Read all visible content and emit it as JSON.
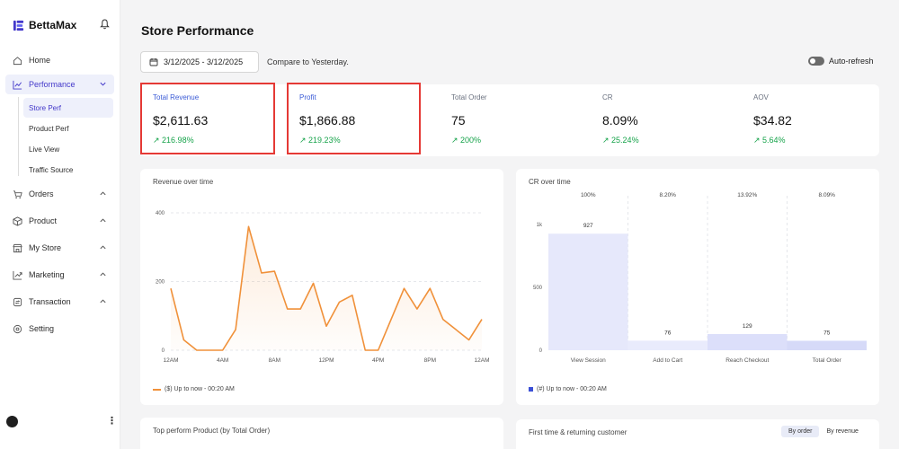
{
  "app": {
    "brand": "BettaMax"
  },
  "sidebar": {
    "items": [
      {
        "label": "Home",
        "icon": "home-icon"
      },
      {
        "label": "Performance",
        "icon": "chart-icon"
      },
      {
        "label": "Orders",
        "icon": "cart-icon"
      },
      {
        "label": "Product",
        "icon": "box-icon"
      },
      {
        "label": "My Store",
        "icon": "store-icon"
      },
      {
        "label": "Marketing",
        "icon": "marketing-icon"
      },
      {
        "label": "Transaction",
        "icon": "transaction-icon"
      },
      {
        "label": "Setting",
        "icon": "gear-icon"
      }
    ],
    "sub_items": [
      "Store Perf",
      "Product Perf",
      "Live View",
      "Traffic Source"
    ]
  },
  "header": {
    "title": "Store Performance",
    "date_range": "3/12/2025 - 3/12/2025",
    "compare": "Compare to Yesterday.",
    "auto_refresh": "Auto-refresh"
  },
  "metrics": [
    {
      "label": "Total Revenue",
      "value": "$2,611.63",
      "change": "↗ 216.98%"
    },
    {
      "label": "Profit",
      "value": "$1,866.88",
      "change": "↗ 219.23%"
    },
    {
      "label": "Total Order",
      "value": "75",
      "change": "↗ 200%"
    },
    {
      "label": "CR",
      "value": "8.09%",
      "change": "↗ 25.24%"
    },
    {
      "label": "AOV",
      "value": "$34.82",
      "change": "↗ 5.64%"
    }
  ],
  "revenue_card": {
    "title": "Revenue over time",
    "legend": "($) Up to now - 00:20 AM"
  },
  "cr_card": {
    "title": "CR over time",
    "legend": "(#) Up to now - 00:20 AM"
  },
  "bottom": {
    "left_title": "Top perform Product (by Total Order)",
    "right_title": "First time & returning customer",
    "by_order": "By order",
    "by_revenue": "By revenue"
  },
  "colors": {
    "accent": "#4338ca",
    "line": "#f0913a",
    "positive": "#16a34a",
    "highlight": "#e53935"
  },
  "chart_data": [
    {
      "type": "line",
      "title": "Revenue over time",
      "x": [
        "12AM",
        "1AM",
        "2AM",
        "3AM",
        "4AM",
        "5AM",
        "6AM",
        "7AM",
        "8AM",
        "9AM",
        "10AM",
        "11AM",
        "12PM",
        "1PM",
        "2PM",
        "3PM",
        "4PM",
        "5PM",
        "6PM",
        "7PM",
        "8PM",
        "9PM",
        "10PM",
        "11PM",
        "12AM"
      ],
      "xticks": [
        "12AM",
        "4AM",
        "8AM",
        "12PM",
        "4PM",
        "8PM",
        "12AM"
      ],
      "yticks": [
        "0",
        "200",
        "400"
      ],
      "values": [
        180,
        30,
        0,
        0,
        0,
        60,
        360,
        225,
        230,
        120,
        120,
        195,
        70,
        140,
        160,
        0,
        0,
        90,
        180,
        120,
        180,
        90,
        60,
        30,
        90
      ],
      "ylim": [
        0,
        400
      ],
      "series_name": "($) Up to now - 00:20 AM"
    },
    {
      "type": "bar",
      "title": "CR over time",
      "categories": [
        "View Session",
        "Add to Cart",
        "Reach Checkout",
        "Total Order"
      ],
      "values": [
        927,
        76,
        129,
        75
      ],
      "rates": [
        "100%",
        "8.20%",
        "13.92%",
        "8.09%"
      ],
      "yticks": [
        "0",
        "500",
        "1k"
      ],
      "ylim": [
        0,
        1000
      ],
      "series_name": "(#) Up to now - 00:20 AM"
    }
  ]
}
